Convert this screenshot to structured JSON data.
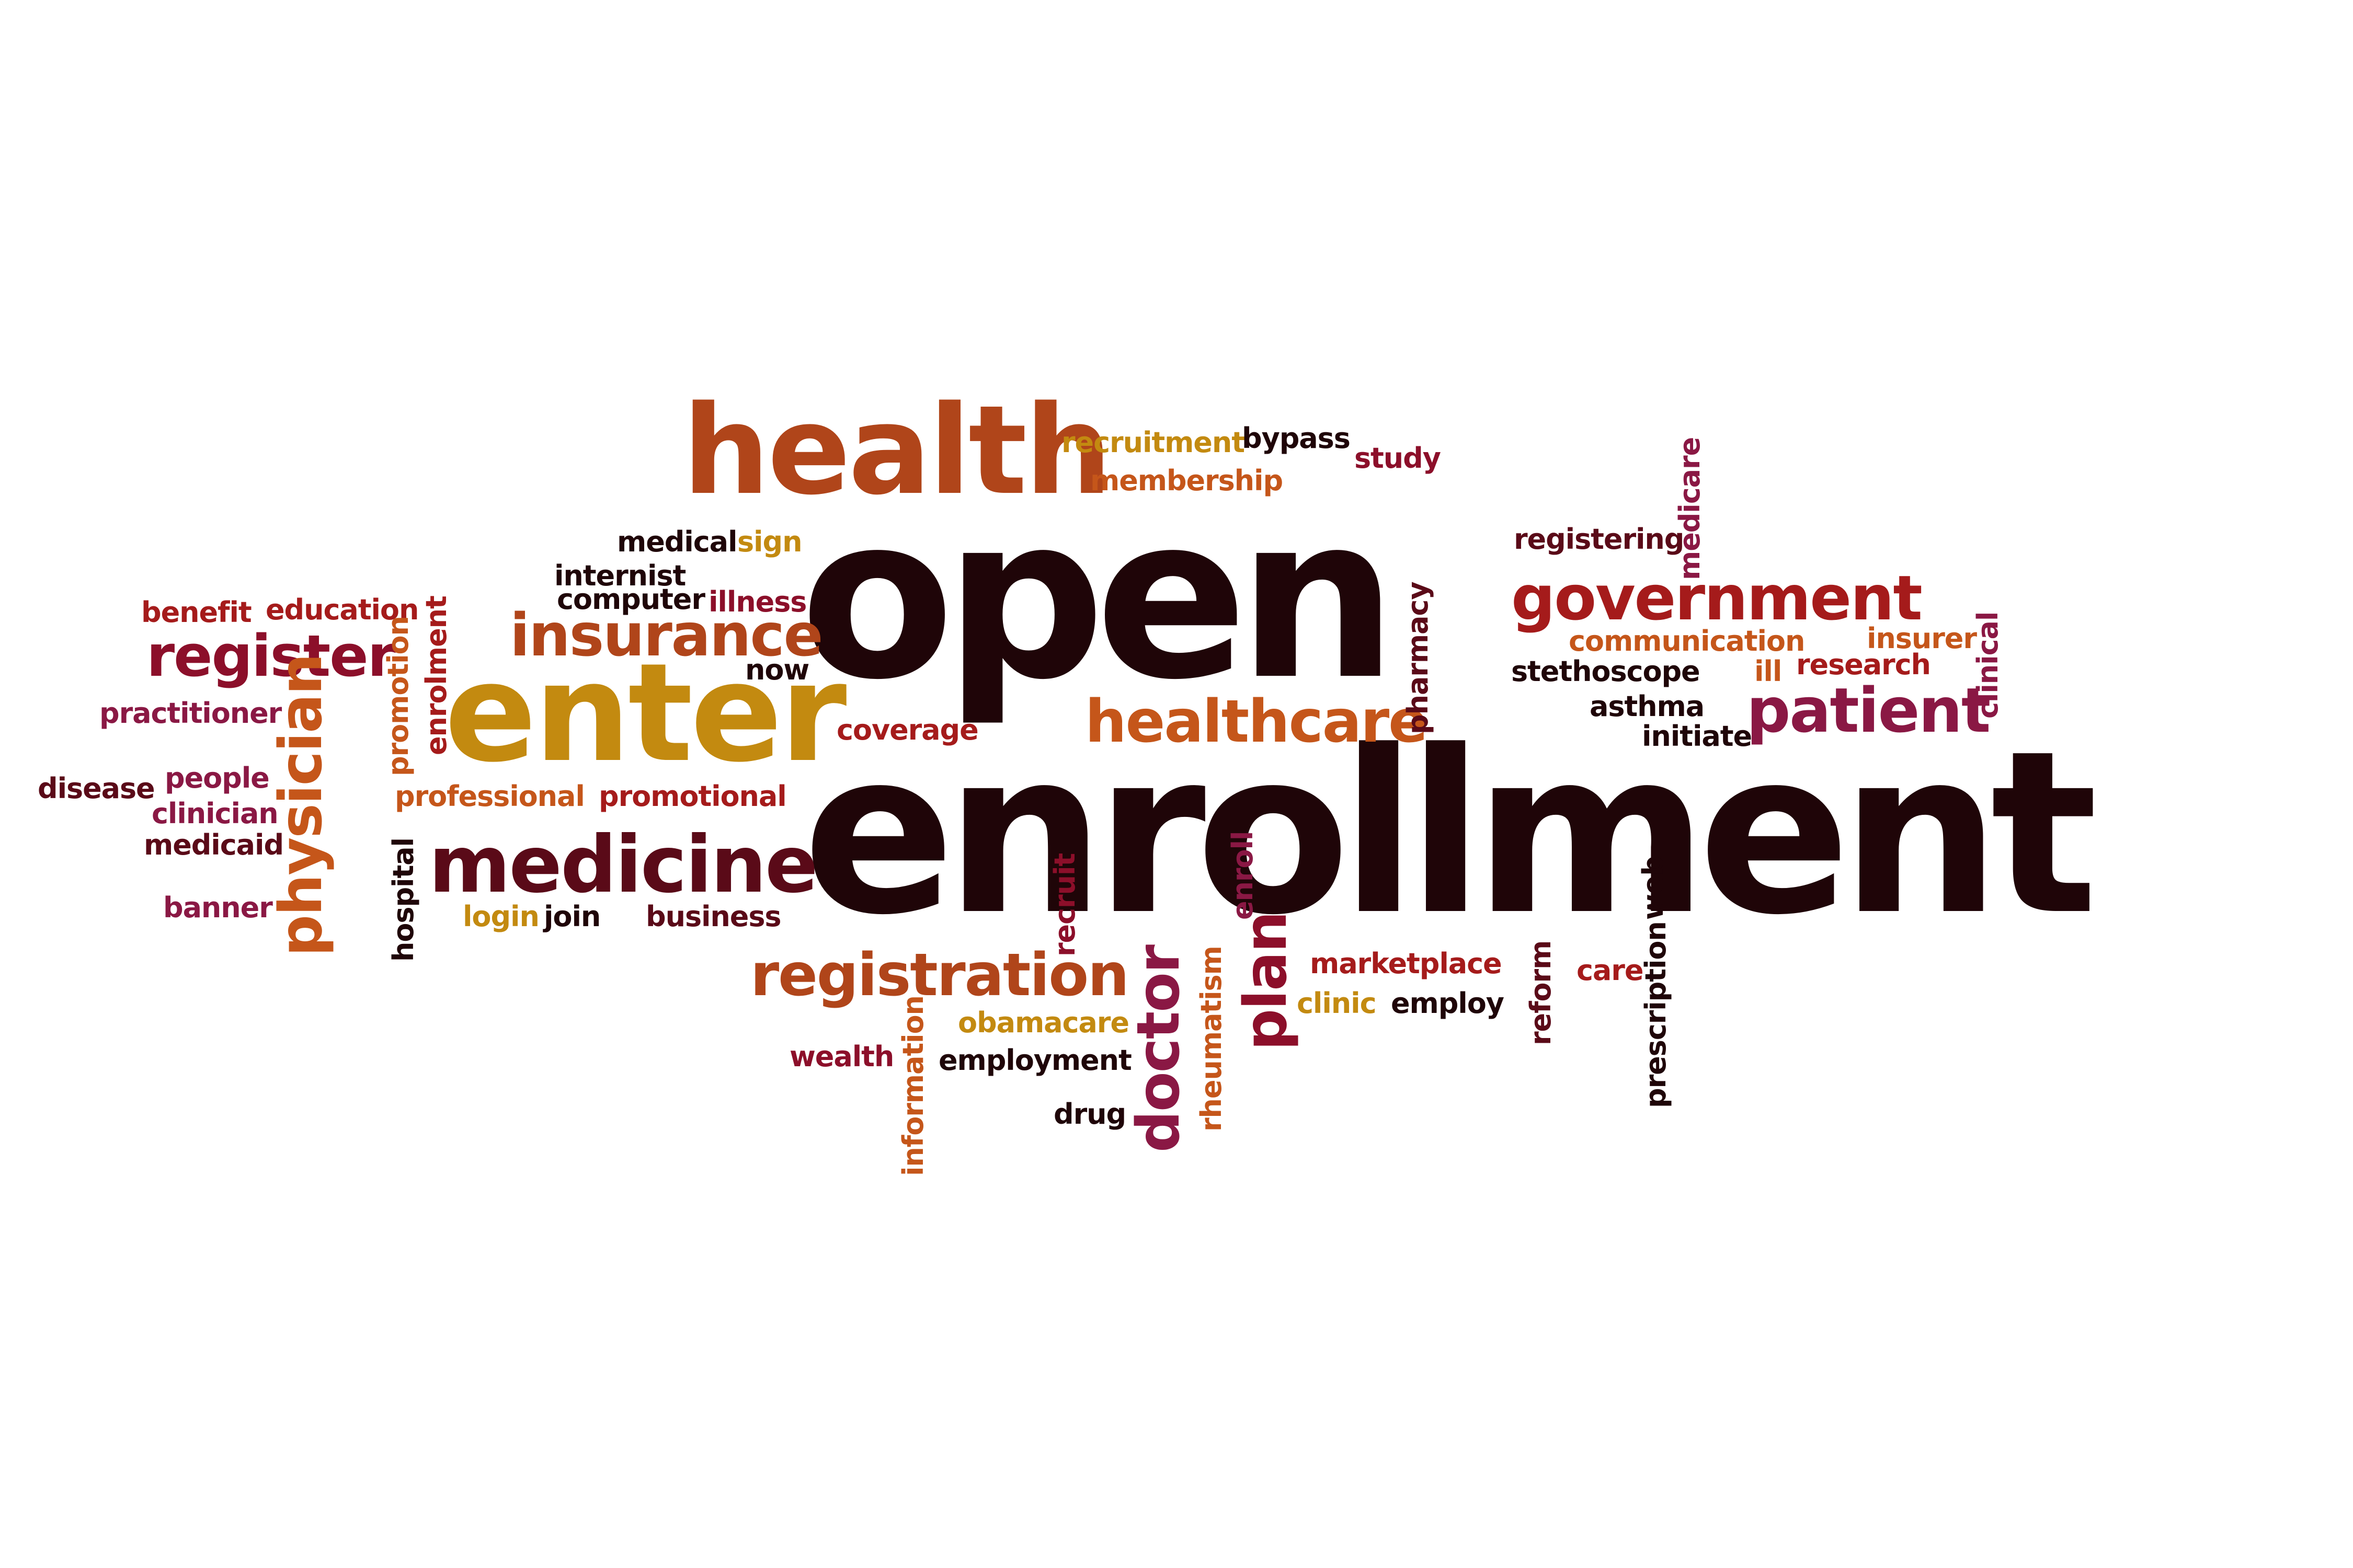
{
  "colors": {
    "background": "#ffffff",
    "dark": "#1f0508",
    "maroon": "#5a0a18",
    "crimson": "#8c0f2a",
    "red": "#a51b1b",
    "rust": "#b0451a",
    "orange": "#c5561a",
    "gold": "#c38a10",
    "plum": "#8a1844"
  },
  "cloud": {
    "open": "open",
    "enrollment": "enrollment",
    "health": "health",
    "enter": "enter",
    "medicine": "medicine",
    "insurance": "insurance",
    "register": "register",
    "government": "government",
    "patient": "patient",
    "healthcare": "healthcare",
    "registration": "registration",
    "physician": "physician",
    "doctor": "doctor",
    "plan": "plan",
    "recruitment": "recruitment",
    "bypass": "bypass",
    "study": "study",
    "membership": "membership",
    "medical": "medical",
    "sign": "sign",
    "internist": "internist",
    "computer": "computer",
    "illness": "illness",
    "now": "now",
    "benefit": "benefit",
    "education": "education",
    "practitioner": "practitioner",
    "disease": "disease",
    "people": "people",
    "clinician": "clinician",
    "medicaid": "medicaid",
    "banner": "banner",
    "promotion": "promotion",
    "enrolment": "enrolment",
    "professional": "professional",
    "promotional": "promotional",
    "coverage": "coverage",
    "hospital": "hospital",
    "login": "login",
    "join": "join",
    "business": "business",
    "registering": "registering",
    "medicare": "medicare",
    "pharmacy": "pharmacy",
    "communication": "communication",
    "insurer": "insurer",
    "stethoscope": "stethoscope",
    "ill": "ill",
    "research": "research",
    "clinical": "clinical",
    "asthma": "asthma",
    "initiate": "initiate",
    "recruit": "recruit",
    "enroll": "enroll",
    "web": "web",
    "marketplace": "marketplace",
    "care": "care",
    "reform": "reform",
    "prescription": "prescription",
    "clinic": "clinic",
    "employ": "employ",
    "obamacare": "obamacare",
    "wealth": "wealth",
    "employment": "employment",
    "information": "information",
    "drug": "drug",
    "rheumatism": "rheumatism"
  }
}
